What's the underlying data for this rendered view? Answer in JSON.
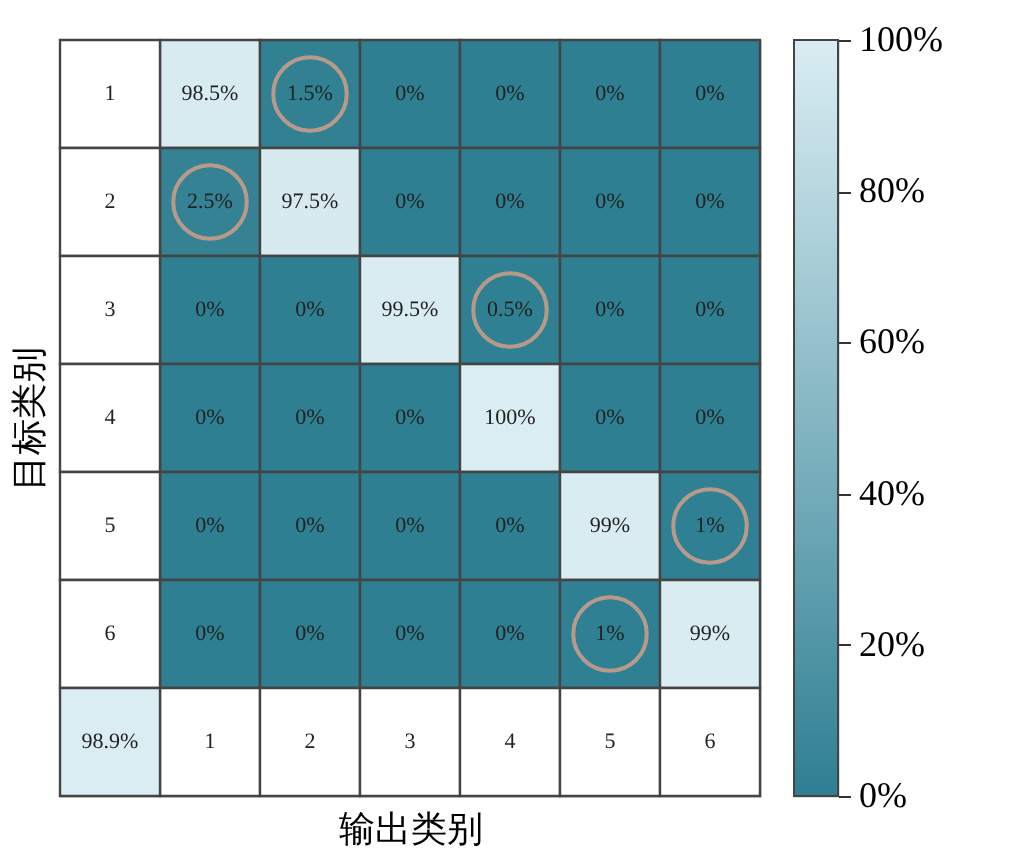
{
  "chart_data": {
    "type": "heatmap",
    "xlabel": "输出类别",
    "ylabel": "目标类别",
    "categories": [
      "1",
      "2",
      "3",
      "4",
      "5",
      "6"
    ],
    "y_categories": [
      "1",
      "2",
      "3",
      "4",
      "5",
      "6"
    ],
    "cells": [
      [
        98.5,
        1.5,
        0,
        0,
        0,
        0
      ],
      [
        2.5,
        97.5,
        0,
        0,
        0,
        0
      ],
      [
        0,
        0,
        99.5,
        0.5,
        0,
        0
      ],
      [
        0,
        0,
        0,
        100,
        0,
        0
      ],
      [
        0,
        0,
        0,
        0,
        99,
        1
      ],
      [
        0,
        0,
        0,
        0,
        1,
        99
      ]
    ],
    "cell_labels": [
      [
        "98.5%",
        "1.5%",
        "0%",
        "0%",
        "0%",
        "0%"
      ],
      [
        "2.5%",
        "97.5%",
        "0%",
        "0%",
        "0%",
        "0%"
      ],
      [
        "0%",
        "0%",
        "99.5%",
        "0.5%",
        "0%",
        "0%"
      ],
      [
        "0%",
        "0%",
        "0%",
        "100%",
        "0%",
        "0%"
      ],
      [
        "0%",
        "0%",
        "0%",
        "0%",
        "99%",
        "1%"
      ],
      [
        "0%",
        "0%",
        "0%",
        "0%",
        "1%",
        "99%"
      ]
    ],
    "colors": [
      "#2e7f92",
      "#daedf3"
    ],
    "clim": [
      0,
      100
    ],
    "cticks": [
      {
        "value": 0,
        "label": "0%"
      },
      {
        "value": 20,
        "label": "20%"
      },
      {
        "value": 40,
        "label": "40%"
      },
      {
        "value": 60,
        "label": "60%"
      },
      {
        "value": 80,
        "label": "80%"
      },
      {
        "value": 100,
        "label": "100%"
      }
    ],
    "annotations": [
      "98.9%"
    ]
  }
}
